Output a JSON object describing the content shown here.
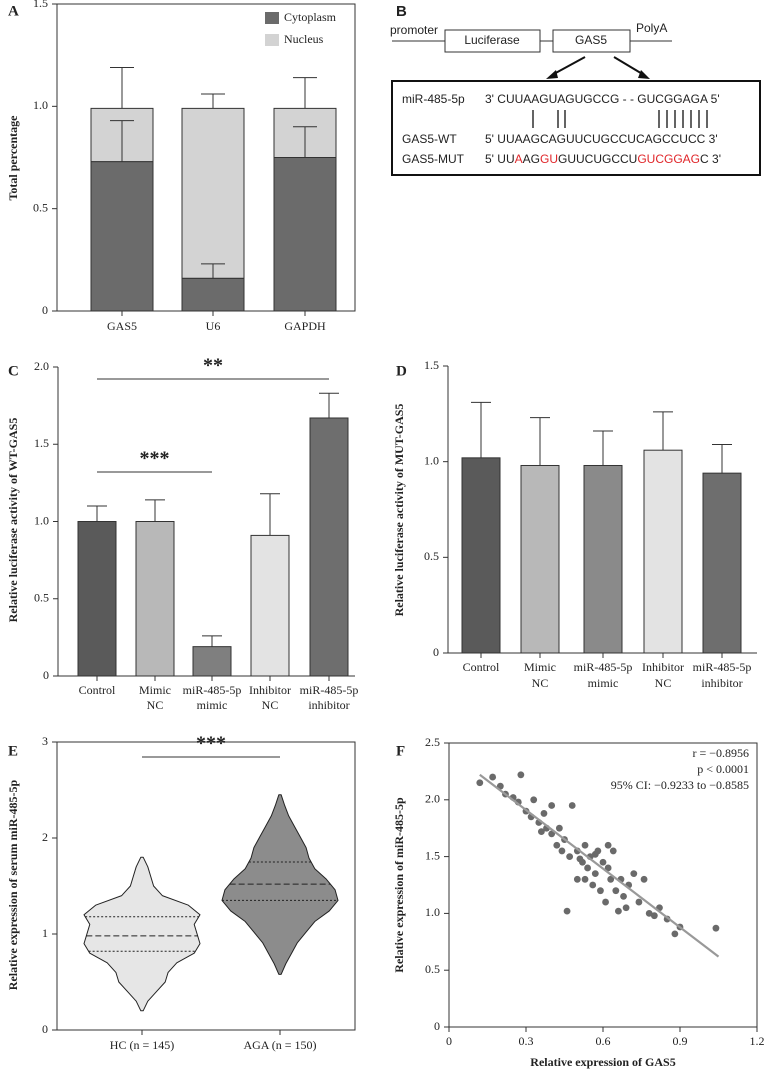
{
  "chart_data": [
    {
      "panel": "A",
      "type": "stacked_bar",
      "ylabel": "Total percentage",
      "categories": [
        "GAS5",
        "U6",
        "GAPDH"
      ],
      "series": [
        {
          "name": "Cytoplasm",
          "color": "#6b6b6b",
          "values": [
            0.73,
            0.16,
            0.75
          ],
          "errors": [
            0.2,
            0.07,
            0.15
          ]
        },
        {
          "name": "Nucleus",
          "color": "#d3d3d3",
          "values": [
            0.26,
            0.83,
            0.24
          ],
          "errors": [
            0.2,
            0.07,
            0.15
          ]
        }
      ],
      "ylim": [
        0,
        1.5
      ],
      "yticks": [
        0,
        0.5,
        {
          "value": 1,
          "label": "1.0"
        },
        1.5
      ],
      "legend": "upper right"
    },
    {
      "panel": "C",
      "type": "bar",
      "ylabel": "Relative luciferase activity of WT-GAS5",
      "categories": [
        "Control",
        [
          "Mimic",
          "NC"
        ],
        [
          "miR-485-5p",
          "mimic"
        ],
        [
          "Inhibitor",
          "NC"
        ],
        [
          "miR-485-5p",
          "inhibitor"
        ]
      ],
      "values": [
        1.0,
        1.0,
        0.19,
        0.91,
        1.67
      ],
      "errors": [
        0.1,
        0.14,
        0.07,
        0.27,
        0.16
      ],
      "colors": [
        "#5a5a5a",
        "#b8b8b8",
        "#7f7f7f",
        "#e3e3e3",
        "#6e6e6e"
      ],
      "ylim": [
        0,
        2
      ],
      "yticks": [
        0,
        0.5,
        {
          "value": 1,
          "label": "1.0"
        },
        1.5,
        {
          "value": 2,
          "label": "2.0"
        }
      ],
      "annotations": [
        {
          "text": "**",
          "from": 0,
          "to": 4
        },
        {
          "text": "***",
          "from": 0,
          "to": 2
        }
      ]
    },
    {
      "panel": "D",
      "type": "bar",
      "ylabel": "Relative luciferase activity of MUT-GAS5",
      "categories": [
        "Control",
        [
          "Mimic",
          "NC"
        ],
        [
          "miR-485-5p",
          "mimic"
        ],
        [
          "Inhibitor",
          "NC"
        ],
        [
          "miR-485-5p",
          "inhibitor"
        ]
      ],
      "values": [
        1.02,
        0.98,
        0.98,
        1.06,
        0.94
      ],
      "errors": [
        0.29,
        0.25,
        0.18,
        0.2,
        0.15
      ],
      "colors": [
        "#5a5a5a",
        "#b8b8b8",
        "#8a8a8a",
        "#e3e3e3",
        "#6e6e6e"
      ],
      "ylim": [
        0,
        1.5
      ],
      "yticks": [
        0,
        0.5,
        {
          "value": 1,
          "label": "1.0"
        },
        1.5
      ]
    },
    {
      "panel": "E",
      "type": "violin",
      "ylabel": "Relative expression of serum miR-485-5p",
      "groups": [
        {
          "name": "HC (n = 145)",
          "color": "#e6e6e6",
          "min": 0.2,
          "max": 1.8,
          "q1": 0.82,
          "median": 0.98,
          "q3": 1.18,
          "density": [
            0.02,
            0.1,
            0.25,
            0.4,
            0.45,
            0.6,
            0.9,
            1.0,
            0.95,
            0.9,
            1.0,
            0.8,
            0.35,
            0.2,
            0.15,
            0.1,
            0.02
          ]
        },
        {
          "name": "AGA (n = 150)",
          "color": "#8c8c8c",
          "min": 0.58,
          "max": 2.45,
          "q1": 1.35,
          "median": 1.52,
          "q3": 1.75,
          "density": [
            0.02,
            0.1,
            0.2,
            0.3,
            0.45,
            0.6,
            0.85,
            1.0,
            0.95,
            0.8,
            0.6,
            0.5,
            0.45,
            0.35,
            0.25,
            0.15,
            0.08,
            0.02
          ]
        }
      ],
      "ylim": [
        0,
        3
      ],
      "yticks": [
        0,
        1,
        2,
        3
      ],
      "annotations": [
        {
          "text": "***",
          "from": 0,
          "to": 1
        }
      ]
    },
    {
      "panel": "F",
      "type": "scatter",
      "xlabel": "Relative expression of GAS5",
      "ylabel": "Relative expression of miR-485-5p",
      "color": "#6a6a6a",
      "x": [
        0.12,
        0.17,
        0.2,
        0.22,
        0.25,
        0.27,
        0.28,
        0.3,
        0.32,
        0.33,
        0.35,
        0.36,
        0.38,
        0.4,
        0.4,
        0.42,
        0.43,
        0.45,
        0.46,
        0.47,
        0.48,
        0.5,
        0.5,
        0.52,
        0.53,
        0.54,
        0.55,
        0.56,
        0.57,
        0.58,
        0.59,
        0.6,
        0.61,
        0.62,
        0.63,
        0.64,
        0.65,
        0.66,
        0.67,
        0.68,
        0.7,
        0.72,
        0.74,
        0.76,
        0.78,
        0.8,
        0.82,
        0.85,
        0.88,
        0.9,
        1.04,
        0.44,
        0.37,
        0.51,
        0.57,
        0.62,
        0.69,
        0.53
      ],
      "values": [
        2.15,
        2.2,
        2.12,
        2.05,
        2.02,
        1.98,
        2.22,
        1.9,
        1.85,
        2.0,
        1.8,
        1.72,
        1.75,
        1.7,
        1.95,
        1.6,
        1.75,
        1.65,
        1.02,
        1.5,
        1.95,
        1.55,
        1.3,
        1.45,
        1.6,
        1.4,
        1.5,
        1.25,
        1.35,
        1.55,
        1.2,
        1.45,
        1.1,
        1.4,
        1.3,
        1.55,
        1.2,
        1.02,
        1.3,
        1.15,
        1.25,
        1.35,
        1.1,
        1.3,
        1.0,
        0.98,
        1.05,
        0.95,
        0.82,
        0.88,
        0.87,
        1.55,
        1.88,
        1.48,
        1.52,
        1.6,
        1.05,
        1.3
      ],
      "trend": {
        "x": [
          0.12,
          1.05
        ],
        "y": [
          2.22,
          0.62
        ]
      },
      "stats": [
        "r = −0.8956",
        "p < 0.0001",
        "95% CI: −0.9233 to −0.8585"
      ],
      "xlim": [
        0,
        1.2
      ],
      "xticks": [
        0,
        0.3,
        0.6,
        0.9,
        1.2
      ],
      "ylim": [
        0,
        2.5
      ],
      "yticks": [
        0,
        0.5,
        {
          "value": 1,
          "label": "1.0"
        },
        1.5,
        {
          "value": 2,
          "label": "2.0"
        },
        2.5
      ]
    }
  ],
  "diagram": {
    "panel": "B",
    "construct": {
      "promoter": "promoter",
      "luciferase": "Luciferase",
      "gas5": "GAS5",
      "polya": "PolyA"
    },
    "rows": [
      {
        "label": "miR-485-5p",
        "segments": [
          {
            "text": "3' CUUAAGUAGUGCCG - - GUCGGAGA 5'"
          }
        ]
      },
      {
        "label": "GAS5-WT",
        "segments": [
          {
            "text": "5' UUAAGCAGUUCUGCCUCAGCCUCC 3'"
          }
        ]
      },
      {
        "label": "GAS5-MUT",
        "segments": [
          {
            "text": "5' UU"
          },
          {
            "text": "A",
            "color": "#e0262a"
          },
          {
            "text": "AG"
          },
          {
            "text": "GU",
            "color": "#e0262a"
          },
          {
            "text": "GUUCUGCCU"
          },
          {
            "text": "GUCGGAG",
            "color": "#e0262a"
          },
          {
            "text": "C 3'"
          }
        ]
      }
    ]
  }
}
